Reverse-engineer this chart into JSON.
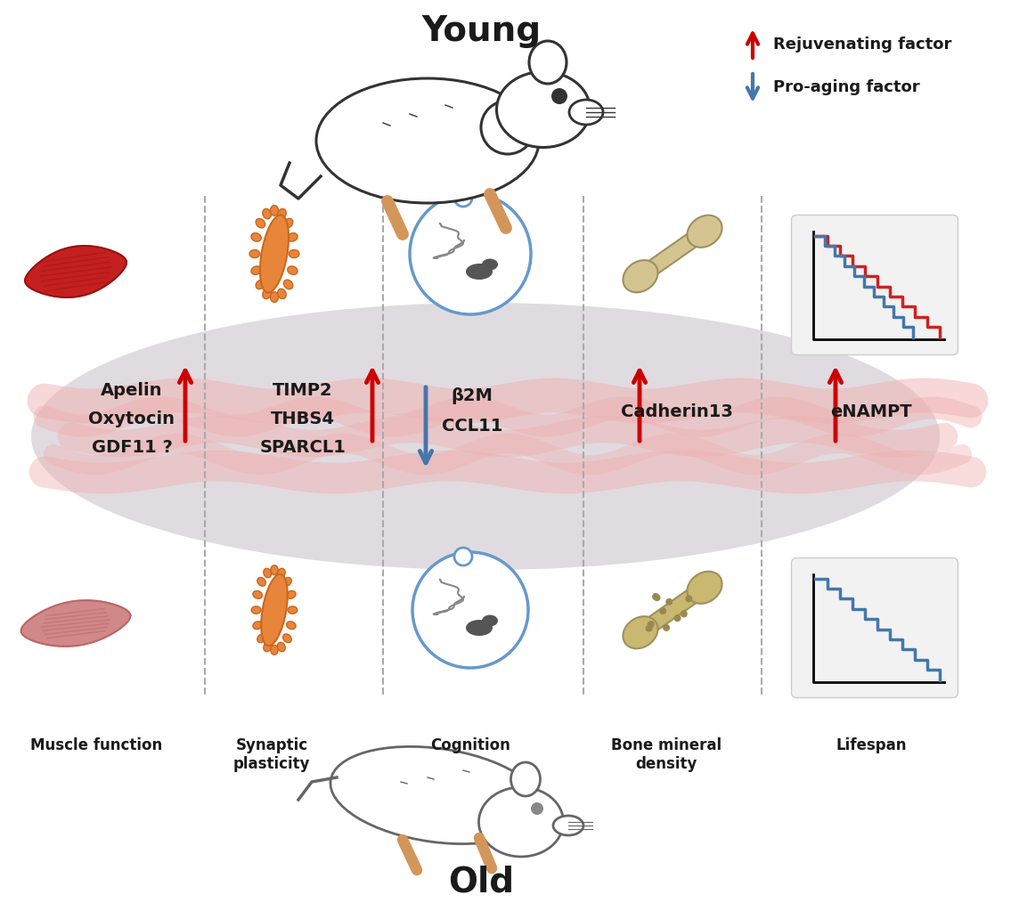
{
  "title_young": "Young",
  "title_old": "Old",
  "legend_rejuvenating": "Rejuvenating factor",
  "legend_proaging": "Pro-aging factor",
  "factors_left": [
    "Apelin",
    "Oxytocin",
    "GDF11 ?"
  ],
  "factors_left2": [
    "TIMP2",
    "THBS4",
    "SPARCL1"
  ],
  "factor_center_down": [
    "β2M",
    "CCL11"
  ],
  "factor_right1": "Cadherin13",
  "factor_right2": "eNAMPT",
  "labels_bottom": [
    "Muscle function",
    "Synaptic\nplasticity",
    "Cognition",
    "Bone mineral\ndensity",
    "Lifespan"
  ],
  "bg_ellipse_color": "#ddd8dd",
  "blood_color": "#f0b8b8",
  "red_arrow_color": "#cc0000",
  "blue_arrow_color": "#4477aa",
  "text_color": "#1a1a1a",
  "dashed_line_color": "#aaaaaa",
  "muscle_top_color": "#cc2222",
  "muscle_bottom_color": "#d08888",
  "neuron_color": "#e8853a",
  "bone_top_color": "#d4c490",
  "bone_bottom_color": "#c8b870",
  "circle_color": "#6699cc"
}
